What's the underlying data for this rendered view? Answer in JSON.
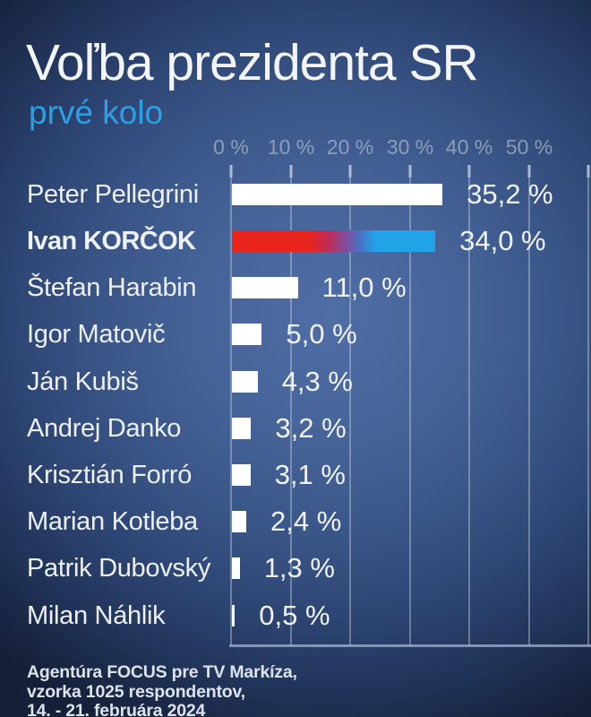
{
  "header": {
    "title": "Voľba prezidenta SR",
    "subtitle": "prvé kolo"
  },
  "chart_data": {
    "type": "bar",
    "orientation": "horizontal",
    "title": "Voľba prezidenta SR",
    "subtitle": "prvé kolo",
    "categories": [
      "Peter Pellegrini",
      "Ivan KORČOK",
      "Štefan Harabin",
      "Igor Matovič",
      "Ján Kubiš",
      "Andrej Danko",
      "Krisztián Forró",
      "Marian Kotleba",
      "Patrik Dubovský",
      "Milan Náhlik"
    ],
    "values": [
      35.2,
      34.0,
      11.0,
      5.0,
      4.3,
      3.2,
      3.1,
      2.4,
      1.3,
      0.5
    ],
    "value_labels": [
      "35,2 %",
      "34,0 %",
      "11,0 %",
      "5,0 %",
      "4,3 %",
      "3,2 %",
      "3,1 %",
      "2,4 %",
      "1,3 %",
      "0,5 %"
    ],
    "x_ticks": [
      "0 %",
      "10 %",
      "20 %",
      "30 %",
      "40 %",
      "50 %"
    ],
    "xlim": [
      0,
      60
    ],
    "grid": "vertical",
    "legend": "none",
    "bar_color": "#ffffff",
    "highlight": {
      "category": "Ivan KORČOK",
      "style": "gradient",
      "gradient_from": "#e8241c",
      "gradient_to": "#21a3e8"
    }
  },
  "footer": {
    "line1": "Agentúra FOCUS pre TV Markíza,",
    "line2": "vzorka 1025 respondentov,",
    "line3": "14. - 21. februára 2024"
  },
  "colors": {
    "subtitle_blue": "#2d9fe6",
    "background_center": "#4f6ea6",
    "background_edge": "#151f38",
    "text_white": "#f3f5f8",
    "grid": "#c4d1e4"
  }
}
